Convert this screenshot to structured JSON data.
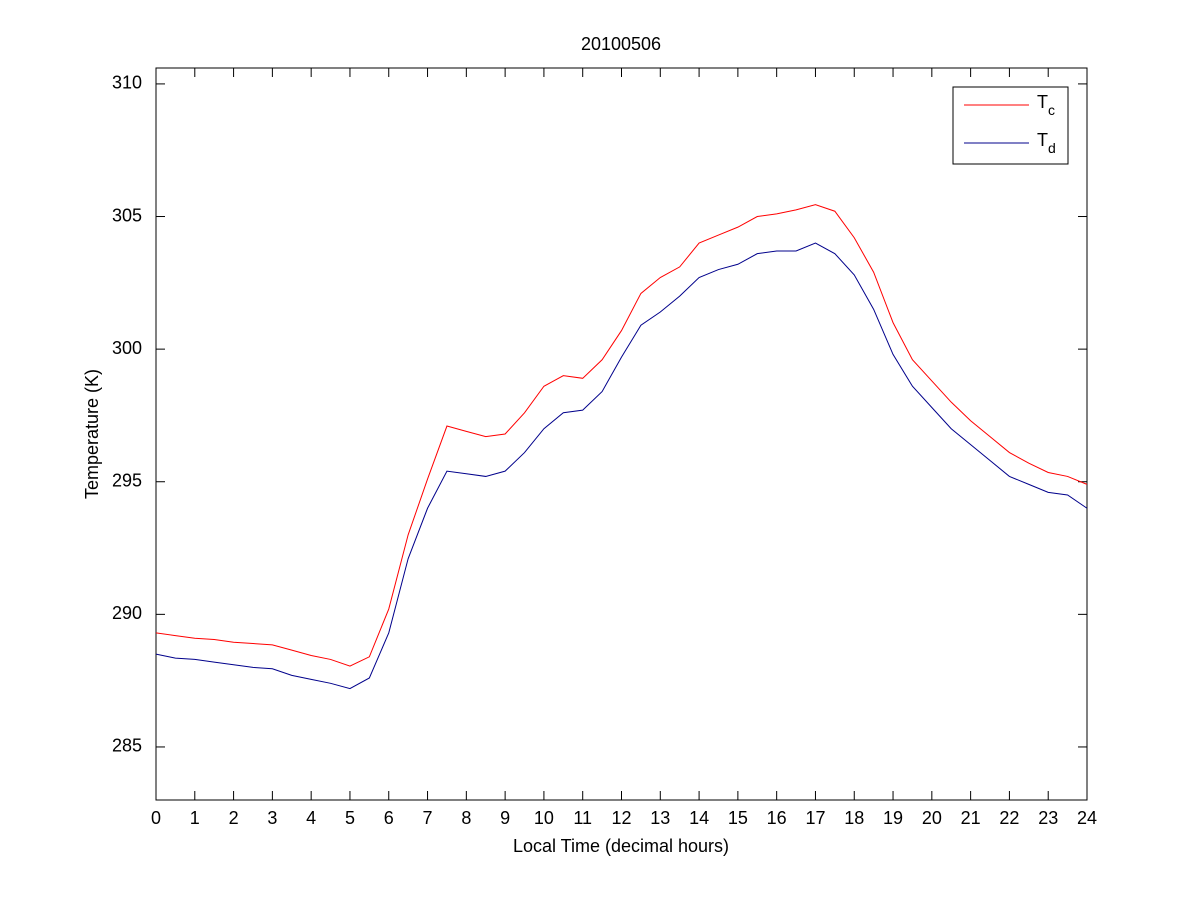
{
  "chart_data": {
    "type": "line",
    "title": "20100506",
    "x_label": "Local Time (decimal hours)",
    "y_label": "Temperature (K)",
    "x": [
      0,
      0.5,
      1,
      1.5,
      2,
      2.5,
      3,
      3.5,
      4,
      4.5,
      5,
      5.5,
      6,
      6.5,
      7,
      7.5,
      8,
      8.5,
      9,
      9.5,
      10,
      10.5,
      11,
      11.5,
      12,
      12.5,
      13,
      13.5,
      14,
      14.5,
      15,
      15.5,
      16,
      16.5,
      17,
      17.5,
      18,
      18.5,
      19,
      19.5,
      20,
      20.5,
      21,
      21.5,
      22,
      22.5,
      23,
      23.5,
      24
    ],
    "series": [
      {
        "name": "T_c",
        "color": "#ff0000",
        "values": [
          289.3,
          289.2,
          289.1,
          289.05,
          288.95,
          288.9,
          288.85,
          288.65,
          288.45,
          288.3,
          288.05,
          288.4,
          290.2,
          293.0,
          295.1,
          297.1,
          296.9,
          296.7,
          296.8,
          297.6,
          298.6,
          299.0,
          298.9,
          299.6,
          300.7,
          302.1,
          302.7,
          303.1,
          304.0,
          304.3,
          304.6,
          305.0,
          305.1,
          305.25,
          305.45,
          305.2,
          304.2,
          302.9,
          301.0,
          299.6,
          298.8,
          298.0,
          297.3,
          296.7,
          296.1,
          295.7,
          295.35,
          295.2,
          294.9
        ]
      },
      {
        "name": "T_d",
        "color": "#00008b",
        "values": [
          288.5,
          288.35,
          288.3,
          288.2,
          288.1,
          288.0,
          287.95,
          287.7,
          287.55,
          287.4,
          287.2,
          287.6,
          289.3,
          292.1,
          294.0,
          295.4,
          295.3,
          295.2,
          295.4,
          296.1,
          297.0,
          297.6,
          297.7,
          298.4,
          299.7,
          300.9,
          301.4,
          302.0,
          302.7,
          303.0,
          303.2,
          303.6,
          303.7,
          303.7,
          304.0,
          303.6,
          302.8,
          301.5,
          299.8,
          298.6,
          297.8,
          297.0,
          296.4,
          295.8,
          295.2,
          294.9,
          294.6,
          294.5,
          294.0
        ]
      }
    ],
    "xlim": [
      0,
      24
    ],
    "xticks": [
      0,
      1,
      2,
      3,
      4,
      5,
      6,
      7,
      8,
      9,
      10,
      11,
      12,
      13,
      14,
      15,
      16,
      17,
      18,
      19,
      20,
      21,
      22,
      23,
      24
    ],
    "ylim": [
      283,
      310.6
    ],
    "yticks": [
      285,
      290,
      295,
      300,
      305,
      310
    ],
    "grid": false,
    "legend": "upper right"
  }
}
